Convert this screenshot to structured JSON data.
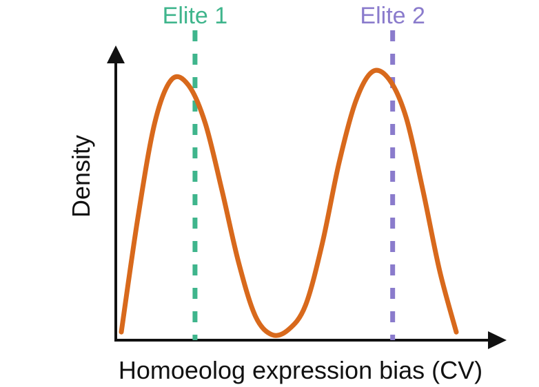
{
  "chart_data": {
    "type": "line",
    "title": "",
    "xlabel": "Homoeolog expression bias (CV)",
    "ylabel": "Density",
    "grid": false,
    "legend": "none",
    "axes_ticks": false,
    "colors": {
      "curve": "#d8691c",
      "elite1": "#3fb58c",
      "elite2": "#8a7bcc",
      "axis": "#111111"
    },
    "xlim": [
      0,
      1
    ],
    "ylim": [
      0,
      1
    ],
    "series": [
      {
        "x": [
          0.0,
          0.05,
          0.1,
          0.15,
          0.2,
          0.25,
          0.3,
          0.35,
          0.4,
          0.45,
          0.5,
          0.55,
          0.6,
          0.65,
          0.7,
          0.75,
          0.8,
          0.85,
          0.9,
          0.95,
          1.0
        ],
        "values": [
          0.02,
          0.45,
          0.8,
          0.96,
          0.94,
          0.8,
          0.55,
          0.28,
          0.08,
          0.01,
          0.03,
          0.12,
          0.35,
          0.65,
          0.88,
          0.99,
          0.96,
          0.82,
          0.55,
          0.25,
          0.02
        ]
      }
    ],
    "annotations": [
      {
        "label": "Elite 1",
        "x": 0.22,
        "color": "#3fb58c",
        "style": "dashed-vertical"
      },
      {
        "label": "Elite 2",
        "x": 0.81,
        "color": "#8a7bcc",
        "style": "dashed-vertical"
      }
    ]
  }
}
